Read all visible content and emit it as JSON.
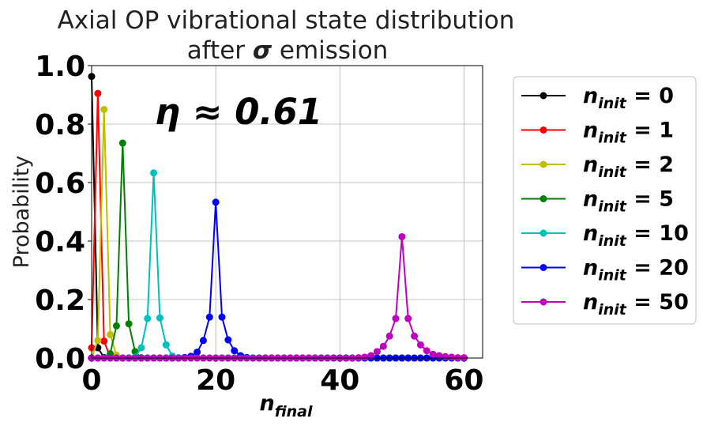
{
  "chart_data": {
    "type": "line",
    "title_line1": "Axial OP vibrational state distribution",
    "title_line2_prefix": "after ",
    "title_line2_symbol": "σ",
    "title_line2_suffix": " emission",
    "xlabel_main": "n",
    "xlabel_sub": "final",
    "ylabel": "Probability",
    "annotation": "η ≈ 0.61",
    "xlim": [
      0,
      63
    ],
    "ylim": [
      0,
      1.0
    ],
    "xticks": [
      "0",
      "20",
      "40",
      "60"
    ],
    "yticks": [
      "0.0",
      "0.2",
      "0.4",
      "0.6",
      "0.8",
      "1.0"
    ],
    "grid": true,
    "legend_position": "outside-right",
    "legend_prefix_main": "n",
    "legend_prefix_sub": "init",
    "series": [
      {
        "name": "n_init = 0",
        "label_value": "0",
        "color": "#000000",
        "x": [
          0,
          1,
          2,
          3,
          4,
          5,
          6,
          7,
          8,
          9,
          10,
          11,
          12,
          13,
          14,
          15,
          16,
          17,
          18,
          19,
          20,
          21,
          22,
          23,
          24,
          25,
          26,
          27,
          28,
          29,
          30,
          31,
          32,
          33,
          34,
          35,
          36,
          37,
          38,
          39,
          40,
          41,
          42,
          43,
          44,
          45,
          46,
          47,
          48,
          49,
          50,
          51,
          52,
          53,
          54,
          55,
          56,
          57,
          58,
          59,
          60
        ],
        "y": [
          0.963,
          0.035,
          0.002,
          0,
          0,
          0,
          0,
          0,
          0,
          0,
          0,
          0,
          0,
          0,
          0,
          0,
          0,
          0,
          0,
          0,
          0,
          0,
          0,
          0,
          0,
          0,
          0,
          0,
          0,
          0,
          0,
          0,
          0,
          0,
          0,
          0,
          0,
          0,
          0,
          0,
          0,
          0,
          0,
          0,
          0,
          0,
          0,
          0,
          0,
          0,
          0,
          0,
          0,
          0,
          0,
          0,
          0,
          0,
          0,
          0,
          0
        ]
      },
      {
        "name": "n_init = 1",
        "label_value": "1",
        "color": "#ff0000",
        "x": [
          0,
          1,
          2,
          3,
          4,
          5,
          6,
          7,
          8,
          9,
          10,
          11,
          12,
          13,
          14,
          15,
          16,
          17,
          18,
          19,
          20,
          21,
          22,
          23,
          24,
          25,
          26,
          27,
          28,
          29,
          30,
          31,
          32,
          33,
          34,
          35,
          36,
          37,
          38,
          39,
          40,
          41,
          42,
          43,
          44,
          45,
          46,
          47,
          48,
          49,
          50,
          51,
          52,
          53,
          54,
          55,
          56,
          57,
          58,
          59,
          60
        ],
        "y": [
          0.035,
          0.905,
          0.058,
          0.002,
          0,
          0,
          0,
          0,
          0,
          0,
          0,
          0,
          0,
          0,
          0,
          0,
          0,
          0,
          0,
          0,
          0,
          0,
          0,
          0,
          0,
          0,
          0,
          0,
          0,
          0,
          0,
          0,
          0,
          0,
          0,
          0,
          0,
          0,
          0,
          0,
          0,
          0,
          0,
          0,
          0,
          0,
          0,
          0,
          0,
          0,
          0,
          0,
          0,
          0,
          0,
          0,
          0,
          0,
          0,
          0,
          0
        ]
      },
      {
        "name": "n_init = 2",
        "label_value": "2",
        "color": "#bfbf00",
        "x": [
          0,
          1,
          2,
          3,
          4,
          5,
          6,
          7,
          8,
          9,
          10,
          11,
          12,
          13,
          14,
          15,
          16,
          17,
          18,
          19,
          20,
          21,
          22,
          23,
          24,
          25,
          26,
          27,
          28,
          29,
          30,
          31,
          32,
          33,
          34,
          35,
          36,
          37,
          38,
          39,
          40,
          41,
          42,
          43,
          44,
          45,
          46,
          47,
          48,
          49,
          50,
          51,
          52,
          53,
          54,
          55,
          56,
          57,
          58,
          59,
          60
        ],
        "y": [
          0.001,
          0.06,
          0.85,
          0.08,
          0.01,
          0,
          0,
          0,
          0,
          0,
          0,
          0,
          0,
          0,
          0,
          0,
          0,
          0,
          0,
          0,
          0,
          0,
          0,
          0,
          0,
          0,
          0,
          0,
          0,
          0,
          0,
          0,
          0,
          0,
          0,
          0,
          0,
          0,
          0,
          0,
          0,
          0,
          0,
          0,
          0,
          0,
          0,
          0,
          0,
          0,
          0,
          0,
          0,
          0,
          0,
          0,
          0,
          0,
          0,
          0,
          0
        ]
      },
      {
        "name": "n_init = 5",
        "label_value": "5",
        "color": "#008000",
        "x": [
          0,
          1,
          2,
          3,
          4,
          5,
          6,
          7,
          8,
          9,
          10,
          11,
          12,
          13,
          14,
          15,
          16,
          17,
          18,
          19,
          20,
          21,
          22,
          23,
          24,
          25,
          26,
          27,
          28,
          29,
          30,
          31,
          32,
          33,
          34,
          35,
          36,
          37,
          38,
          39,
          40,
          41,
          42,
          43,
          44,
          45,
          46,
          47,
          48,
          49,
          50,
          51,
          52,
          53,
          54,
          55,
          56,
          57,
          58,
          59,
          60
        ],
        "y": [
          0,
          0,
          0.001,
          0.015,
          0.11,
          0.735,
          0.117,
          0.022,
          0.001,
          0,
          0,
          0,
          0,
          0,
          0,
          0,
          0,
          0,
          0,
          0,
          0,
          0,
          0,
          0,
          0,
          0,
          0,
          0,
          0,
          0,
          0,
          0,
          0,
          0,
          0,
          0,
          0,
          0,
          0,
          0,
          0,
          0,
          0,
          0,
          0,
          0,
          0,
          0,
          0,
          0,
          0,
          0,
          0,
          0,
          0,
          0,
          0,
          0,
          0,
          0,
          0
        ]
      },
      {
        "name": "n_init = 10",
        "label_value": "10",
        "color": "#00bfbf",
        "x": [
          0,
          1,
          2,
          3,
          4,
          5,
          6,
          7,
          8,
          9,
          10,
          11,
          12,
          13,
          14,
          15,
          16,
          17,
          18,
          19,
          20,
          21,
          22,
          23,
          24,
          25,
          26,
          27,
          28,
          29,
          30,
          31,
          32,
          33,
          34,
          35,
          36,
          37,
          38,
          39,
          40,
          41,
          42,
          43,
          44,
          45,
          46,
          47,
          48,
          49,
          50,
          51,
          52,
          53,
          54,
          55,
          56,
          57,
          58,
          59,
          60
        ],
        "y": [
          0,
          0,
          0,
          0,
          0,
          0,
          0,
          0.003,
          0.035,
          0.135,
          0.633,
          0.137,
          0.045,
          0.007,
          0.001,
          0,
          0,
          0,
          0,
          0,
          0,
          0,
          0,
          0,
          0,
          0,
          0,
          0,
          0,
          0,
          0,
          0,
          0,
          0,
          0,
          0,
          0,
          0,
          0,
          0,
          0,
          0,
          0,
          0,
          0,
          0,
          0,
          0,
          0,
          0,
          0,
          0,
          0,
          0,
          0,
          0,
          0,
          0,
          0,
          0,
          0
        ]
      },
      {
        "name": "n_init = 20",
        "label_value": "20",
        "color": "#0000ff",
        "x": [
          0,
          1,
          2,
          3,
          4,
          5,
          6,
          7,
          8,
          9,
          10,
          11,
          12,
          13,
          14,
          15,
          16,
          17,
          18,
          19,
          20,
          21,
          22,
          23,
          24,
          25,
          26,
          27,
          28,
          29,
          30,
          31,
          32,
          33,
          34,
          35,
          36,
          37,
          38,
          39,
          40,
          41,
          42,
          43,
          44,
          45,
          46,
          47,
          48,
          49,
          50,
          51,
          52,
          53,
          54,
          55,
          56,
          57,
          58,
          59,
          60
        ],
        "y": [
          0,
          0,
          0,
          0,
          0,
          0,
          0,
          0,
          0,
          0,
          0,
          0,
          0,
          0,
          0,
          0.002,
          0.006,
          0.02,
          0.06,
          0.14,
          0.533,
          0.14,
          0.062,
          0.025,
          0.008,
          0.002,
          0,
          0,
          0,
          0,
          0,
          0,
          0,
          0,
          0,
          0,
          0,
          0,
          0,
          0,
          0,
          0,
          0,
          0,
          0,
          0,
          0,
          0,
          0,
          0,
          0,
          0,
          0,
          0,
          0,
          0,
          0,
          0,
          0,
          0,
          0
        ]
      },
      {
        "name": "n_init = 50",
        "label_value": "50",
        "color": "#bf00bf",
        "x": [
          0,
          1,
          2,
          3,
          4,
          5,
          6,
          7,
          8,
          9,
          10,
          11,
          12,
          13,
          14,
          15,
          16,
          17,
          18,
          19,
          20,
          21,
          22,
          23,
          24,
          25,
          26,
          27,
          28,
          29,
          30,
          31,
          32,
          33,
          34,
          35,
          36,
          37,
          38,
          39,
          40,
          41,
          42,
          43,
          44,
          45,
          46,
          47,
          48,
          49,
          50,
          51,
          52,
          53,
          54,
          55,
          56,
          57,
          58,
          59,
          60
        ],
        "y": [
          0,
          0,
          0,
          0,
          0,
          0,
          0,
          0,
          0,
          0,
          0,
          0,
          0,
          0,
          0,
          0,
          0,
          0,
          0,
          0,
          0,
          0,
          0,
          0,
          0,
          0,
          0,
          0,
          0,
          0,
          0,
          0,
          0,
          0,
          0,
          0,
          0,
          0,
          0,
          0,
          0,
          0,
          0,
          0.001,
          0.003,
          0.008,
          0.022,
          0.04,
          0.075,
          0.135,
          0.415,
          0.135,
          0.075,
          0.045,
          0.025,
          0.013,
          0.008,
          0.005,
          0.003,
          0.001,
          0.001
        ]
      }
    ]
  }
}
